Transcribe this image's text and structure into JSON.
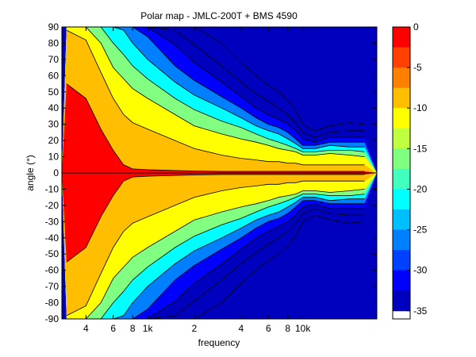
{
  "chart_data": {
    "type": "heatmap",
    "title": "Polar map - JMLC-200T + BMS 4590",
    "xlabel": "frequency",
    "ylabel": "angle (°)",
    "x_scale": "log",
    "xlim": [
      280,
      30000
    ],
    "ylim": [
      -90,
      90
    ],
    "x_ticks": [
      {
        "value": 400,
        "label": "4"
      },
      {
        "value": 600,
        "label": "6"
      },
      {
        "value": 800,
        "label": "8"
      },
      {
        "value": 1000,
        "label": "1k"
      },
      {
        "value": 2000,
        "label": "2"
      },
      {
        "value": 4000,
        "label": "4"
      },
      {
        "value": 6000,
        "label": "6"
      },
      {
        "value": 8000,
        "label": "8"
      },
      {
        "value": 10000,
        "label": "10k"
      }
    ],
    "y_ticks": [
      90,
      80,
      70,
      60,
      50,
      40,
      30,
      20,
      10,
      0,
      -10,
      -20,
      -30,
      -40,
      -50,
      -60,
      -70,
      -80,
      -90
    ],
    "colorbar": {
      "range": [
        -36,
        0
      ],
      "ticks": [
        0,
        -5,
        -10,
        -15,
        -20,
        -25,
        -30,
        -35
      ],
      "levels": [
        0,
        -2.5,
        -5,
        -7.5,
        -10,
        -12.5,
        -15,
        -17.5,
        -20,
        -22.5,
        -25,
        -27.5,
        -30,
        -32.5,
        -35,
        -36
      ],
      "colors": [
        "#ff0000",
        "#ff4000",
        "#ff8000",
        "#ffbf00",
        "#ffff00",
        "#bfff40",
        "#80ff80",
        "#40ffbf",
        "#00ffff",
        "#00bfff",
        "#0080ff",
        "#0040ff",
        "#0000ff",
        "#0000bf"
      ]
    },
    "contour_angles": {
      "frequencies": [
        300,
        400,
        500,
        600,
        700,
        800,
        1000,
        1500,
        2000,
        3000,
        4000,
        5000,
        6000,
        7000,
        8000,
        9000,
        10000,
        12000,
        15000,
        20000,
        25000
      ],
      "levels": [
        {
          "level": -2.5,
          "angle": [
            55,
            46,
            27,
            14,
            5,
            2.5,
            2,
            1.5,
            1.2,
            1,
            1,
            1,
            1,
            1,
            1,
            1,
            1,
            1,
            1,
            1,
            1
          ]
        },
        {
          "level": -5,
          "angle": [
            88,
            82,
            62,
            46,
            36,
            31,
            27,
            20,
            15,
            11,
            9,
            8,
            7,
            7,
            6,
            6,
            5,
            5,
            5,
            5,
            5
          ]
        },
        {
          "level": -7.5,
          "angle": [
            90,
            90,
            80,
            65,
            58,
            52,
            46,
            36,
            29,
            24,
            21,
            19,
            17,
            15,
            14,
            13,
            11,
            11,
            12,
            11,
            10
          ]
        },
        {
          "level": -10,
          "angle": [
            90,
            90,
            90,
            80,
            73,
            66,
            58,
            46,
            39,
            32,
            28,
            24,
            21,
            19,
            17,
            15,
            13,
            13,
            14,
            14,
            13
          ]
        },
        {
          "level": -15,
          "angle": [
            90,
            90,
            90,
            90,
            88,
            80,
            70,
            56,
            48,
            40,
            34,
            29,
            26,
            24,
            21,
            18,
            15,
            15,
            17,
            16,
            16
          ]
        },
        {
          "level": -20,
          "angle": [
            90,
            90,
            90,
            90,
            90,
            90,
            84,
            66,
            57,
            47,
            40,
            34,
            30,
            28,
            25,
            21,
            17,
            17,
            19,
            19,
            19
          ]
        },
        {
          "level": -25,
          "angle": [
            90,
            90,
            90,
            90,
            90,
            90,
            90,
            79,
            68,
            56,
            47,
            40,
            36,
            33,
            30,
            26,
            21,
            19,
            22,
            22,
            22
          ]
        },
        {
          "level": -30,
          "angle": [
            90,
            90,
            90,
            90,
            90,
            90,
            90,
            88,
            79,
            66,
            56,
            49,
            44,
            40,
            36,
            31,
            25,
            22,
            25,
            26,
            26
          ]
        },
        {
          "level": -35,
          "angle": [
            90,
            90,
            90,
            90,
            90,
            90,
            90,
            90,
            90,
            80,
            68,
            60,
            54,
            50,
            45,
            39,
            30,
            26,
            29,
            31,
            30
          ]
        }
      ]
    }
  }
}
